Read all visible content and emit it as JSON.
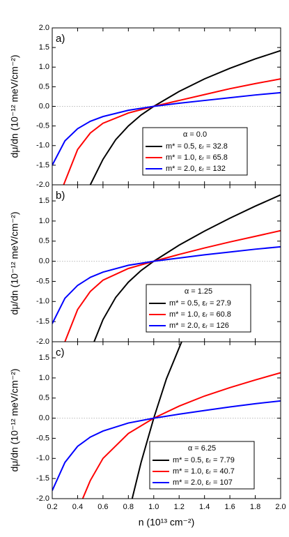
{
  "chart_data": [
    {
      "type": "line",
      "panel_label": "a)",
      "y_label": "dμ/dn (10⁻¹² meV/cm⁻²)",
      "legend_title": "α = 0.0",
      "legend": "lower right",
      "xlim": [
        0.2,
        2.0
      ],
      "xticks": [
        0.2,
        0.4,
        0.6,
        0.8,
        {
          "value": 1,
          "label": "1.0"
        },
        1.2,
        1.4,
        1.6,
        1.8,
        {
          "value": 2,
          "label": "2.0"
        }
      ],
      "ylim": [
        -2,
        2
      ],
      "yticks": [
        {
          "value": -2,
          "label": "-2.0"
        },
        -1.5,
        {
          "value": -1,
          "label": "-1.0"
        },
        -0.5,
        {
          "value": 0,
          "label": "0.0"
        },
        0.5,
        {
          "value": 1,
          "label": "1.0"
        },
        1.5,
        {
          "value": 2,
          "label": "2.0"
        }
      ],
      "series": [
        {
          "name": "m* = 0.5, εᵣ = 32.8",
          "color": "#000000",
          "x": [
            0.5,
            0.6,
            0.7,
            0.8,
            0.9,
            1.0,
            1.2,
            1.4,
            1.6,
            1.8,
            2.0
          ],
          "values": [
            -2.0,
            -1.35,
            -0.85,
            -0.5,
            -0.22,
            0,
            0.38,
            0.7,
            0.97,
            1.21,
            1.42
          ]
        },
        {
          "name": "m* = 1.0, εᵣ = 65.8",
          "color": "#ff0000",
          "x": [
            0.29,
            0.4,
            0.5,
            0.6,
            0.8,
            1.0,
            1.2,
            1.4,
            1.6,
            1.8,
            2.0
          ],
          "values": [
            -2.0,
            -1.1,
            -0.68,
            -0.43,
            -0.17,
            0,
            0.15,
            0.3,
            0.45,
            0.58,
            0.7
          ]
        },
        {
          "name": "m* = 2.0, εᵣ = 132",
          "color": "#0000ff",
          "x": [
            0.2,
            0.3,
            0.4,
            0.5,
            0.6,
            0.8,
            1.0,
            1.2,
            1.4,
            1.6,
            1.8,
            2.0
          ],
          "values": [
            -1.5,
            -0.88,
            -0.57,
            -0.38,
            -0.26,
            -0.1,
            0,
            0.08,
            0.15,
            0.22,
            0.29,
            0.35
          ]
        }
      ]
    },
    {
      "type": "line",
      "panel_label": "b)",
      "y_label": "dμ/dn (10⁻¹² meV/cm⁻²)",
      "legend_title": "α = 1.25",
      "legend": "lower right",
      "xlim": [
        0.2,
        2.0
      ],
      "xticks": [
        0.2,
        0.4,
        0.6,
        0.8,
        {
          "value": 1,
          "label": "1.0"
        },
        1.2,
        1.4,
        1.6,
        1.8,
        {
          "value": 2,
          "label": "2.0"
        }
      ],
      "ylim": [
        -2,
        1.9
      ],
      "yticks": [
        {
          "value": -2,
          "label": "-2.0"
        },
        -1.5,
        {
          "value": -1,
          "label": "-1.0"
        },
        -0.5,
        {
          "value": 0,
          "label": "0.0"
        },
        0.5,
        {
          "value": 1,
          "label": "1.0"
        },
        1.5
      ],
      "series": [
        {
          "name": "m* = 0.5, εᵣ = 27.9",
          "color": "#000000",
          "x": [
            0.53,
            0.6,
            0.7,
            0.8,
            0.9,
            1.0,
            1.2,
            1.4,
            1.6,
            1.8,
            2.0
          ],
          "values": [
            -2.0,
            -1.45,
            -0.9,
            -0.52,
            -0.23,
            0,
            0.4,
            0.75,
            1.07,
            1.37,
            1.65
          ]
        },
        {
          "name": "m* = 1.0, εᵣ = 60.8",
          "color": "#ff0000",
          "x": [
            0.3,
            0.4,
            0.5,
            0.6,
            0.8,
            1.0,
            1.2,
            1.4,
            1.6,
            1.8,
            2.0
          ],
          "values": [
            -2.0,
            -1.2,
            -0.75,
            -0.47,
            -0.18,
            0,
            0.17,
            0.33,
            0.48,
            0.62,
            0.76
          ]
        },
        {
          "name": "m* = 2.0, εᵣ = 126",
          "color": "#0000ff",
          "x": [
            0.2,
            0.3,
            0.4,
            0.5,
            0.6,
            0.8,
            1.0,
            1.2,
            1.4,
            1.6,
            1.8,
            2.0
          ],
          "values": [
            -1.55,
            -0.92,
            -0.6,
            -0.4,
            -0.27,
            -0.1,
            0,
            0.08,
            0.16,
            0.23,
            0.3,
            0.36
          ]
        }
      ]
    },
    {
      "type": "line",
      "panel_label": "c)",
      "y_label": "dμ/dn (10⁻¹² meV/cm⁻²)",
      "x_label": "n (10¹³ cm⁻²)",
      "legend_title": "α = 6.25",
      "legend": "lower right",
      "xlim": [
        0.2,
        2.0
      ],
      "xticks": [
        0.2,
        0.4,
        0.6,
        0.8,
        {
          "value": 1,
          "label": "1.0"
        },
        1.2,
        1.4,
        1.6,
        1.8,
        {
          "value": 2,
          "label": "2.0"
        }
      ],
      "ylim": [
        -2,
        1.9
      ],
      "yticks": [
        {
          "value": -2,
          "label": "-2.0"
        },
        -1.5,
        {
          "value": -1,
          "label": "-1.0"
        },
        -0.5,
        {
          "value": 0,
          "label": "0.0"
        },
        0.5,
        {
          "value": 1,
          "label": "1.0"
        },
        1.5
      ],
      "series": [
        {
          "name": "m* = 0.5, εᵣ = 7.79",
          "color": "#000000",
          "x": [
            0.83,
            0.9,
            1.0,
            1.1,
            1.22
          ],
          "values": [
            -2.0,
            -1.1,
            0,
            0.98,
            1.9
          ]
        },
        {
          "name": "m* = 1.0, εᵣ = 40.7",
          "color": "#ff0000",
          "x": [
            0.44,
            0.5,
            0.6,
            0.8,
            1.0,
            1.2,
            1.4,
            1.6,
            1.8,
            2.0
          ],
          "values": [
            -2.0,
            -1.55,
            -1.0,
            -0.38,
            0,
            0.3,
            0.55,
            0.76,
            0.95,
            1.13
          ]
        },
        {
          "name": "m* = 2.0, εᵣ = 107",
          "color": "#0000ff",
          "x": [
            0.2,
            0.3,
            0.4,
            0.5,
            0.6,
            0.8,
            1.0,
            1.2,
            1.4,
            1.6,
            1.8,
            2.0
          ],
          "values": [
            -1.8,
            -1.1,
            -0.7,
            -0.47,
            -0.32,
            -0.12,
            0,
            0.1,
            0.19,
            0.28,
            0.36,
            0.43
          ]
        }
      ]
    }
  ]
}
